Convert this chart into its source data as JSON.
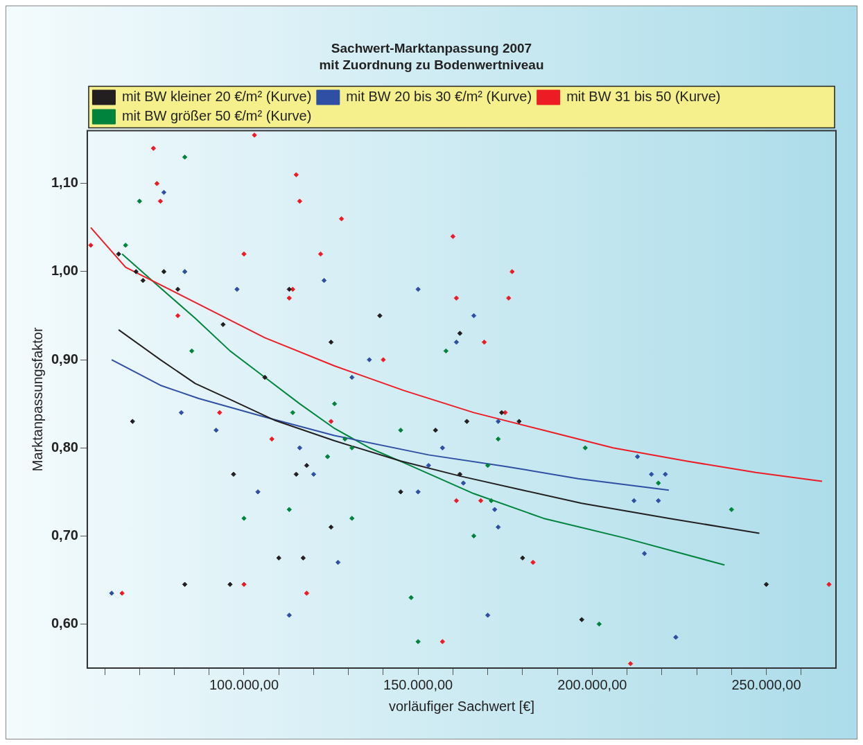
{
  "chart_data": {
    "type": "scatter",
    "title": "Sachwert-Marktanpassung 2007",
    "subtitle": "mit Zuordnung zu Bodenwertniveau",
    "xlabel": "vorläufiger Sachwert [€]",
    "ylabel": "Marktanpassungsfaktor",
    "legend": "top",
    "xlim": [
      55000,
      270000
    ],
    "ylim": [
      0.55,
      1.16
    ],
    "xticks": [
      {
        "value": 60000,
        "label": null
      },
      {
        "value": 70000,
        "label": null
      },
      {
        "value": 80000,
        "label": null
      },
      {
        "value": 90000,
        "label": null
      },
      {
        "value": 100000,
        "label": "100.000,00"
      },
      {
        "value": 110000,
        "label": null
      },
      {
        "value": 120000,
        "label": null
      },
      {
        "value": 130000,
        "label": null
      },
      {
        "value": 140000,
        "label": null
      },
      {
        "value": 150000,
        "label": "150.000,00"
      },
      {
        "value": 160000,
        "label": null
      },
      {
        "value": 170000,
        "label": null
      },
      {
        "value": 180000,
        "label": null
      },
      {
        "value": 190000,
        "label": null
      },
      {
        "value": 200000,
        "label": "200.000,00"
      },
      {
        "value": 210000,
        "label": null
      },
      {
        "value": 220000,
        "label": null
      },
      {
        "value": 230000,
        "label": null
      },
      {
        "value": 240000,
        "label": null
      },
      {
        "value": 250000,
        "label": "250.000,00"
      },
      {
        "value": 260000,
        "label": null
      }
    ],
    "yticks": [
      {
        "value": 0.6,
        "label": "0,60"
      },
      {
        "value": 0.7,
        "label": "0,70"
      },
      {
        "value": 0.8,
        "label": "0,80"
      },
      {
        "value": 0.9,
        "label": "0,90"
      },
      {
        "value": 1.0,
        "label": "1,00"
      },
      {
        "value": 1.1,
        "label": "1,10"
      }
    ],
    "series": [
      {
        "marker": "diamond",
        "color": "#231f20",
        "x": [
          64000,
          69000,
          71000,
          77000,
          81000,
          68000,
          94000,
          106000,
          113000,
          125000,
          97000,
          115000,
          118000,
          83000,
          96000,
          110000,
          117000,
          125000,
          139000,
          145000,
          155000,
          162000,
          164000,
          162000,
          174000,
          179000,
          180000,
          197000,
          250000
        ],
        "values": [
          1.02,
          1.0,
          0.99,
          1.0,
          0.98,
          0.83,
          0.94,
          0.88,
          0.98,
          0.92,
          0.77,
          0.77,
          0.78,
          0.645,
          0.645,
          0.675,
          0.675,
          0.71,
          0.95,
          0.75,
          0.82,
          0.93,
          0.83,
          0.77,
          0.84,
          0.83,
          0.675,
          0.605,
          0.645
        ]
      },
      {
        "marker": "diamond",
        "color": "#2e4fa3",
        "x": [
          62000,
          77000,
          83000,
          82000,
          92000,
          98000,
          104000,
          113000,
          116000,
          120000,
          123000,
          127000,
          131000,
          136000,
          150000,
          150000,
          153000,
          157000,
          161000,
          163000,
          166000,
          173000,
          172000,
          173000,
          170000,
          213000,
          217000,
          221000,
          212000,
          219000,
          215000,
          224000
        ],
        "values": [
          0.635,
          1.09,
          1.0,
          0.84,
          0.82,
          0.98,
          0.75,
          0.61,
          0.8,
          0.77,
          0.99,
          0.67,
          0.88,
          0.9,
          0.98,
          0.75,
          0.78,
          0.8,
          0.92,
          0.76,
          0.95,
          0.83,
          0.73,
          0.71,
          0.61,
          0.79,
          0.77,
          0.77,
          0.74,
          0.74,
          0.68,
          0.585
        ]
      },
      {
        "marker": "diamond",
        "color": "#ed1c24",
        "x": [
          56000,
          74000,
          75000,
          76000,
          65000,
          81000,
          93000,
          100000,
          100000,
          103000,
          108000,
          115000,
          116000,
          114000,
          113000,
          118000,
          122000,
          125000,
          128000,
          140000,
          160000,
          161000,
          157000,
          161000,
          169000,
          168000,
          175000,
          176000,
          177000,
          183000,
          211000,
          268000
        ],
        "values": [
          1.03,
          1.14,
          1.1,
          1.08,
          0.635,
          0.95,
          0.84,
          0.645,
          1.02,
          1.155,
          0.81,
          1.11,
          1.08,
          0.98,
          0.97,
          0.635,
          1.02,
          0.83,
          1.06,
          0.9,
          1.04,
          0.97,
          0.58,
          0.74,
          0.92,
          0.74,
          0.84,
          0.97,
          1.0,
          0.67,
          0.555,
          0.645
        ]
      },
      {
        "marker": "diamond",
        "color": "#00843d",
        "x": [
          66000,
          83000,
          70000,
          85000,
          100000,
          113000,
          114000,
          124000,
          126000,
          129000,
          131000,
          131000,
          145000,
          148000,
          150000,
          158000,
          166000,
          170000,
          171000,
          173000,
          198000,
          202000,
          219000,
          240000
        ],
        "values": [
          1.03,
          1.13,
          1.08,
          0.91,
          0.72,
          0.73,
          0.84,
          0.79,
          0.85,
          0.81,
          0.8,
          0.72,
          0.82,
          0.63,
          0.58,
          0.91,
          0.7,
          0.78,
          0.74,
          0.81,
          0.8,
          0.6,
          0.76,
          0.73
        ]
      },
      {
        "type": "line",
        "marker": "none",
        "name": "mit BW kleiner 20 €/m² (Kurve)",
        "color": "#231f20",
        "x": [
          64000,
          76000,
          86000,
          96000,
          109000,
          126000,
          145000,
          162000,
          180000,
          197000,
          222000,
          248000
        ],
        "values": [
          0.934,
          0.9,
          0.873,
          0.855,
          0.831,
          0.808,
          0.785,
          0.768,
          0.752,
          0.737,
          0.72,
          0.703
        ]
      },
      {
        "type": "line",
        "marker": "none",
        "name": "mit BW 20 bis 30 €/m² (Kurve)",
        "color": "#2e4fa3",
        "x": [
          62000,
          76000,
          87000,
          106000,
          126000,
          153000,
          175000,
          196000,
          222000
        ],
        "values": [
          0.9,
          0.871,
          0.856,
          0.835,
          0.814,
          0.792,
          0.779,
          0.765,
          0.752
        ]
      },
      {
        "type": "line",
        "marker": "none",
        "name": "mit BW 31 bis 50 (Kurve)",
        "color": "#ed1c24",
        "x": [
          56000,
          66000,
          86000,
          106000,
          126000,
          146000,
          166000,
          186000,
          206000,
          227000,
          247000,
          266000
        ],
        "values": [
          1.05,
          1.005,
          0.965,
          0.925,
          0.893,
          0.865,
          0.84,
          0.82,
          0.8,
          0.785,
          0.772,
          0.762
        ]
      },
      {
        "type": "line",
        "marker": "none",
        "name": "mit BW größer 50 €/m² (Kurve)",
        "color": "#00843d",
        "x": [
          65000,
          75000,
          86000,
          96000,
          106000,
          116000,
          126000,
          136000,
          146000,
          166000,
          186000,
          209000,
          238000
        ],
        "values": [
          1.02,
          0.985,
          0.947,
          0.91,
          0.88,
          0.85,
          0.822,
          0.8,
          0.783,
          0.748,
          0.72,
          0.698,
          0.667
        ]
      }
    ]
  }
}
